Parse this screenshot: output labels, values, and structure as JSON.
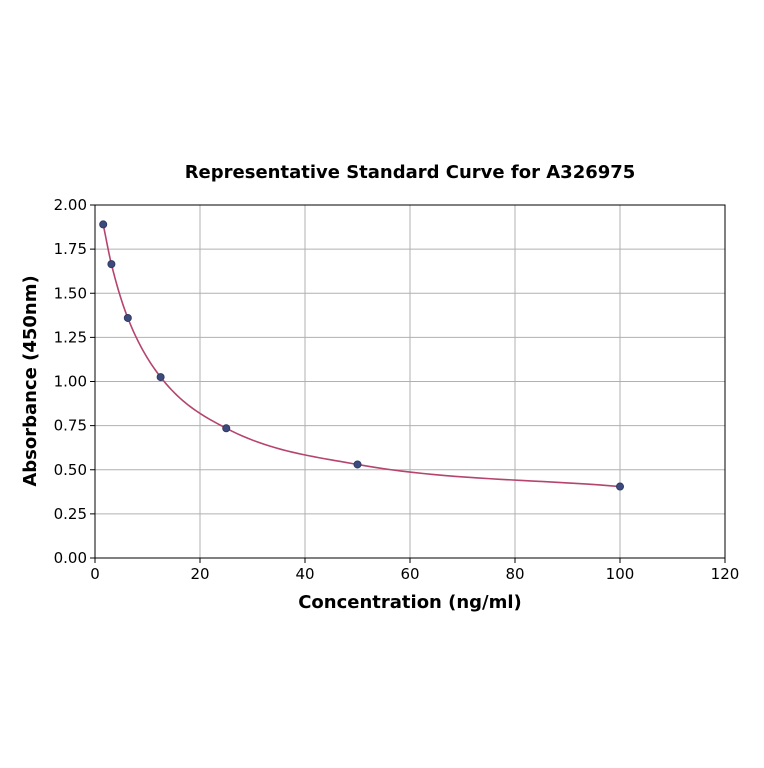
{
  "chart_data": {
    "type": "scatter",
    "title": "Representative Standard Curve for A326975",
    "xlabel": "Concentration (ng/ml)",
    "ylabel": "Absorbance (450nm)",
    "xlim": [
      0,
      120
    ],
    "ylim": [
      0,
      2.0
    ],
    "x_ticks": [
      "0",
      "20",
      "40",
      "60",
      "80",
      "100",
      "120"
    ],
    "y_ticks": [
      "0.00",
      "0.25",
      "0.50",
      "0.75",
      "1.00",
      "1.25",
      "1.50",
      "1.75",
      "2.00"
    ],
    "grid": true,
    "series": [
      {
        "x": [
          1.5625,
          3.125,
          6.25,
          12.5,
          25,
          50,
          100
        ],
        "y": [
          1.89,
          1.665,
          1.36,
          1.025,
          0.735,
          0.53,
          0.405
        ],
        "marker_color": "#3c4a7c",
        "curve_color": "#b5446e",
        "fit_curve": true
      }
    ]
  }
}
